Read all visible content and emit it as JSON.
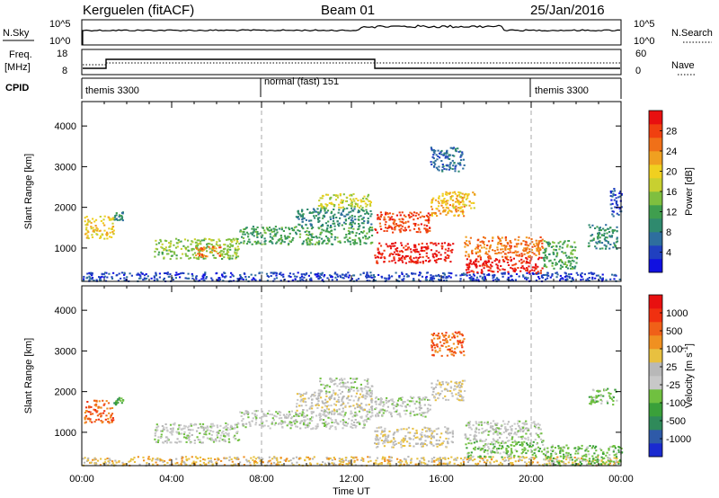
{
  "header": {
    "station": "Kerguelen (fitACF)",
    "beam": "Beam 01",
    "date": "25/Jan/2016"
  },
  "labels": {
    "nsky": "N.Sky",
    "nsearch": "N.Search",
    "freq": "Freq.",
    "mhz": "[MHz]",
    "nave": "Nave",
    "cpid": "CPID",
    "slant_range": "Slant Range [km]",
    "power": "Power [dB]",
    "velocity": "Velocity [m s",
    "velocity_exp": "-1",
    "velocity_close": "]",
    "time_ut": "Time UT"
  },
  "noise_axis": {
    "left_ticks": [
      "10^5",
      "10^0"
    ],
    "right_ticks": [
      "10^5",
      "10^0"
    ]
  },
  "freq_axis": {
    "left_ticks": [
      "18",
      "8"
    ],
    "right_ticks": [
      "60",
      "0"
    ]
  },
  "cpid_segments": [
    {
      "label": "themis 3300",
      "start_hour": 0,
      "end_hour": 8
    },
    {
      "label": "normal (fast) 151",
      "start_hour": 8,
      "end_hour": 20
    },
    {
      "label": "themis 3300",
      "start_hour": 20,
      "end_hour": 24
    }
  ],
  "chart_data": [
    {
      "type": "heatmap",
      "name": "power",
      "xlabel": "Time UT",
      "ylabel": "Slant Range [km]",
      "x_ticks": [
        "00:00",
        "04:00",
        "08:00",
        "12:00",
        "16:00",
        "20:00",
        "00:00"
      ],
      "xlim_hours": [
        0,
        24
      ],
      "ylim_km": [
        180,
        4600
      ],
      "y_ticks": [
        1000,
        2000,
        3000,
        4000
      ],
      "colorbar": {
        "label": "Power [dB]",
        "ticks": [
          4,
          8,
          12,
          16,
          20,
          24,
          28
        ],
        "colors": [
          "#1010e0",
          "#2040c0",
          "#2e6e9e",
          "#2f8a6e",
          "#3f9e4e",
          "#7fbf3f",
          "#c8d030",
          "#f0d020",
          "#f0a020",
          "#f07018",
          "#f04010",
          "#e81010"
        ]
      },
      "echo_regions": [
        {
          "t0": 0.0,
          "t1": 24.0,
          "r0": 200,
          "r1": 420,
          "c": 1
        },
        {
          "t0": 0.1,
          "t1": 1.4,
          "r0": 1250,
          "r1": 1800,
          "c": 7
        },
        {
          "t0": 1.4,
          "t1": 1.8,
          "r0": 1700,
          "r1": 1900,
          "c": 3
        },
        {
          "t0": 3.2,
          "t1": 7.0,
          "r0": 750,
          "r1": 1250,
          "c": 5
        },
        {
          "t0": 5.0,
          "t1": 6.2,
          "r0": 800,
          "r1": 1050,
          "c": 9
        },
        {
          "t0": 7.0,
          "t1": 12.9,
          "r0": 1100,
          "r1": 1550,
          "c": 4
        },
        {
          "t0": 9.5,
          "t1": 12.9,
          "r0": 1550,
          "r1": 2000,
          "c": 3
        },
        {
          "t0": 10.5,
          "t1": 12.9,
          "r0": 2000,
          "r1": 2350,
          "c": 6
        },
        {
          "t0": 13.0,
          "t1": 16.5,
          "r0": 650,
          "r1": 1150,
          "c": 11
        },
        {
          "t0": 13.0,
          "t1": 15.5,
          "r0": 1400,
          "r1": 1900,
          "c": 10
        },
        {
          "t0": 15.5,
          "t1": 17.0,
          "r0": 1800,
          "r1": 2300,
          "c": 8
        },
        {
          "t0": 16.0,
          "t1": 17.5,
          "r0": 2000,
          "r1": 2400,
          "c": 7
        },
        {
          "t0": 15.5,
          "t1": 17.0,
          "r0": 2900,
          "r1": 3500,
          "c": 2
        },
        {
          "t0": 17.0,
          "t1": 20.5,
          "r0": 400,
          "r1": 800,
          "c": 11
        },
        {
          "t0": 17.0,
          "t1": 20.5,
          "r0": 800,
          "r1": 1300,
          "c": 9
        },
        {
          "t0": 20.5,
          "t1": 22.0,
          "r0": 500,
          "r1": 1200,
          "c": 4
        },
        {
          "t0": 22.5,
          "t1": 23.8,
          "r0": 1000,
          "r1": 1600,
          "c": 3
        },
        {
          "t0": 23.5,
          "t1": 24.0,
          "r0": 1800,
          "r1": 2500,
          "c": 1
        }
      ]
    },
    {
      "type": "heatmap",
      "name": "velocity",
      "xlabel": "Time UT",
      "ylabel": "Slant Range [km]",
      "x_ticks": [
        "00:00",
        "04:00",
        "08:00",
        "12:00",
        "16:00",
        "20:00",
        "00:00"
      ],
      "xlim_hours": [
        0,
        24
      ],
      "ylim_km": [
        180,
        4600
      ],
      "y_ticks": [
        1000,
        2000,
        3000,
        4000
      ],
      "colorbar": {
        "label": "Velocity [m s-1]",
        "ticks": [
          "1000",
          "500",
          "100",
          "25",
          "-25",
          "-100",
          "-500",
          "-1000"
        ],
        "colors": [
          "#1a2ad0",
          "#2e5aa8",
          "#2f8a5a",
          "#3aa03a",
          "#70c040",
          "#c8c8c8",
          "#b8b8b8",
          "#e8c040",
          "#f09020",
          "#f06018",
          "#f03010",
          "#e81010"
        ]
      },
      "echo_regions": [
        {
          "t0": 0.0,
          "t1": 24.0,
          "r0": 200,
          "r1": 420,
          "c": 7
        },
        {
          "t0": 0.1,
          "t1": 1.4,
          "r0": 1250,
          "r1": 1800,
          "c": 9
        },
        {
          "t0": 1.4,
          "t1": 1.8,
          "r0": 1700,
          "r1": 1900,
          "c": 3
        },
        {
          "t0": 3.2,
          "t1": 7.0,
          "r0": 750,
          "r1": 1250,
          "c": 5
        },
        {
          "t0": 7.0,
          "t1": 12.9,
          "r0": 1100,
          "r1": 1550,
          "c": 5
        },
        {
          "t0": 9.5,
          "t1": 12.9,
          "r0": 1550,
          "r1": 2000,
          "c": 6
        },
        {
          "t0": 10.5,
          "t1": 12.9,
          "r0": 2000,
          "r1": 2350,
          "c": 5
        },
        {
          "t0": 13.0,
          "t1": 16.5,
          "r0": 650,
          "r1": 1150,
          "c": 6
        },
        {
          "t0": 13.0,
          "t1": 15.5,
          "r0": 1400,
          "r1": 1900,
          "c": 5
        },
        {
          "t0": 15.5,
          "t1": 17.0,
          "r0": 1800,
          "r1": 2300,
          "c": 6
        },
        {
          "t0": 15.5,
          "t1": 17.0,
          "r0": 2900,
          "r1": 3500,
          "c": 9
        },
        {
          "t0": 17.0,
          "t1": 20.5,
          "r0": 400,
          "r1": 800,
          "c": 4
        },
        {
          "t0": 17.0,
          "t1": 20.5,
          "r0": 800,
          "r1": 1300,
          "c": 5
        },
        {
          "t0": 20.5,
          "t1": 24.0,
          "r0": 200,
          "r1": 700,
          "c": 4
        },
        {
          "t0": 22.5,
          "t1": 23.8,
          "r0": 1700,
          "r1": 2100,
          "c": 4
        }
      ]
    }
  ]
}
